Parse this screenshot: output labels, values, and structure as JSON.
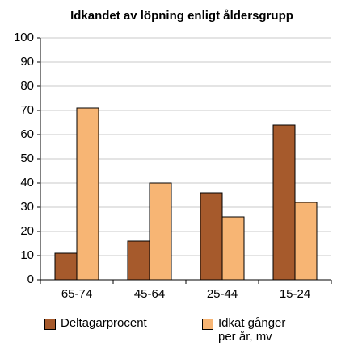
{
  "chart_data": {
    "type": "bar",
    "title": "Idkandet av löpning enligt åldersgrupp",
    "categories": [
      "65-74",
      "45-64",
      "25-44",
      "15-24"
    ],
    "series": [
      {
        "name": "Deltagarprocent",
        "color": "#a65a2c",
        "values": [
          11,
          16,
          36,
          64
        ]
      },
      {
        "name": "Idkat gånger per år, mv",
        "color": "#f7b574",
        "values": [
          71,
          40,
          26,
          32
        ]
      }
    ],
    "ylim": [
      0,
      100
    ],
    "yticks": [
      0,
      10,
      20,
      30,
      40,
      50,
      60,
      70,
      80,
      90,
      100
    ],
    "grid": true
  }
}
